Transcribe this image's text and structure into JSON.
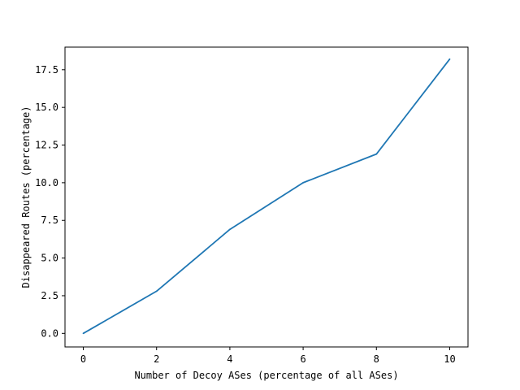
{
  "chart_data": {
    "type": "line",
    "title": "",
    "xlabel": "Number of Decoy ASes (percentage of all ASes)",
    "ylabel": "Disappeared Routes (percentage)",
    "xlim": [
      -0.5,
      10.5
    ],
    "ylim": [
      -0.9,
      19.0
    ],
    "xticks": [
      "0",
      "2",
      "4",
      "6",
      "8",
      "10"
    ],
    "yticks": [
      "0.0",
      "2.5",
      "5.0",
      "7.5",
      "10.0",
      "12.5",
      "15.0",
      "17.5"
    ],
    "grid": false,
    "series": [
      {
        "color": "#1f77b4",
        "x": [
          0,
          2,
          4,
          6,
          8,
          10
        ],
        "y": [
          0.0,
          2.8,
          6.9,
          10.0,
          11.9,
          18.2
        ]
      }
    ]
  }
}
